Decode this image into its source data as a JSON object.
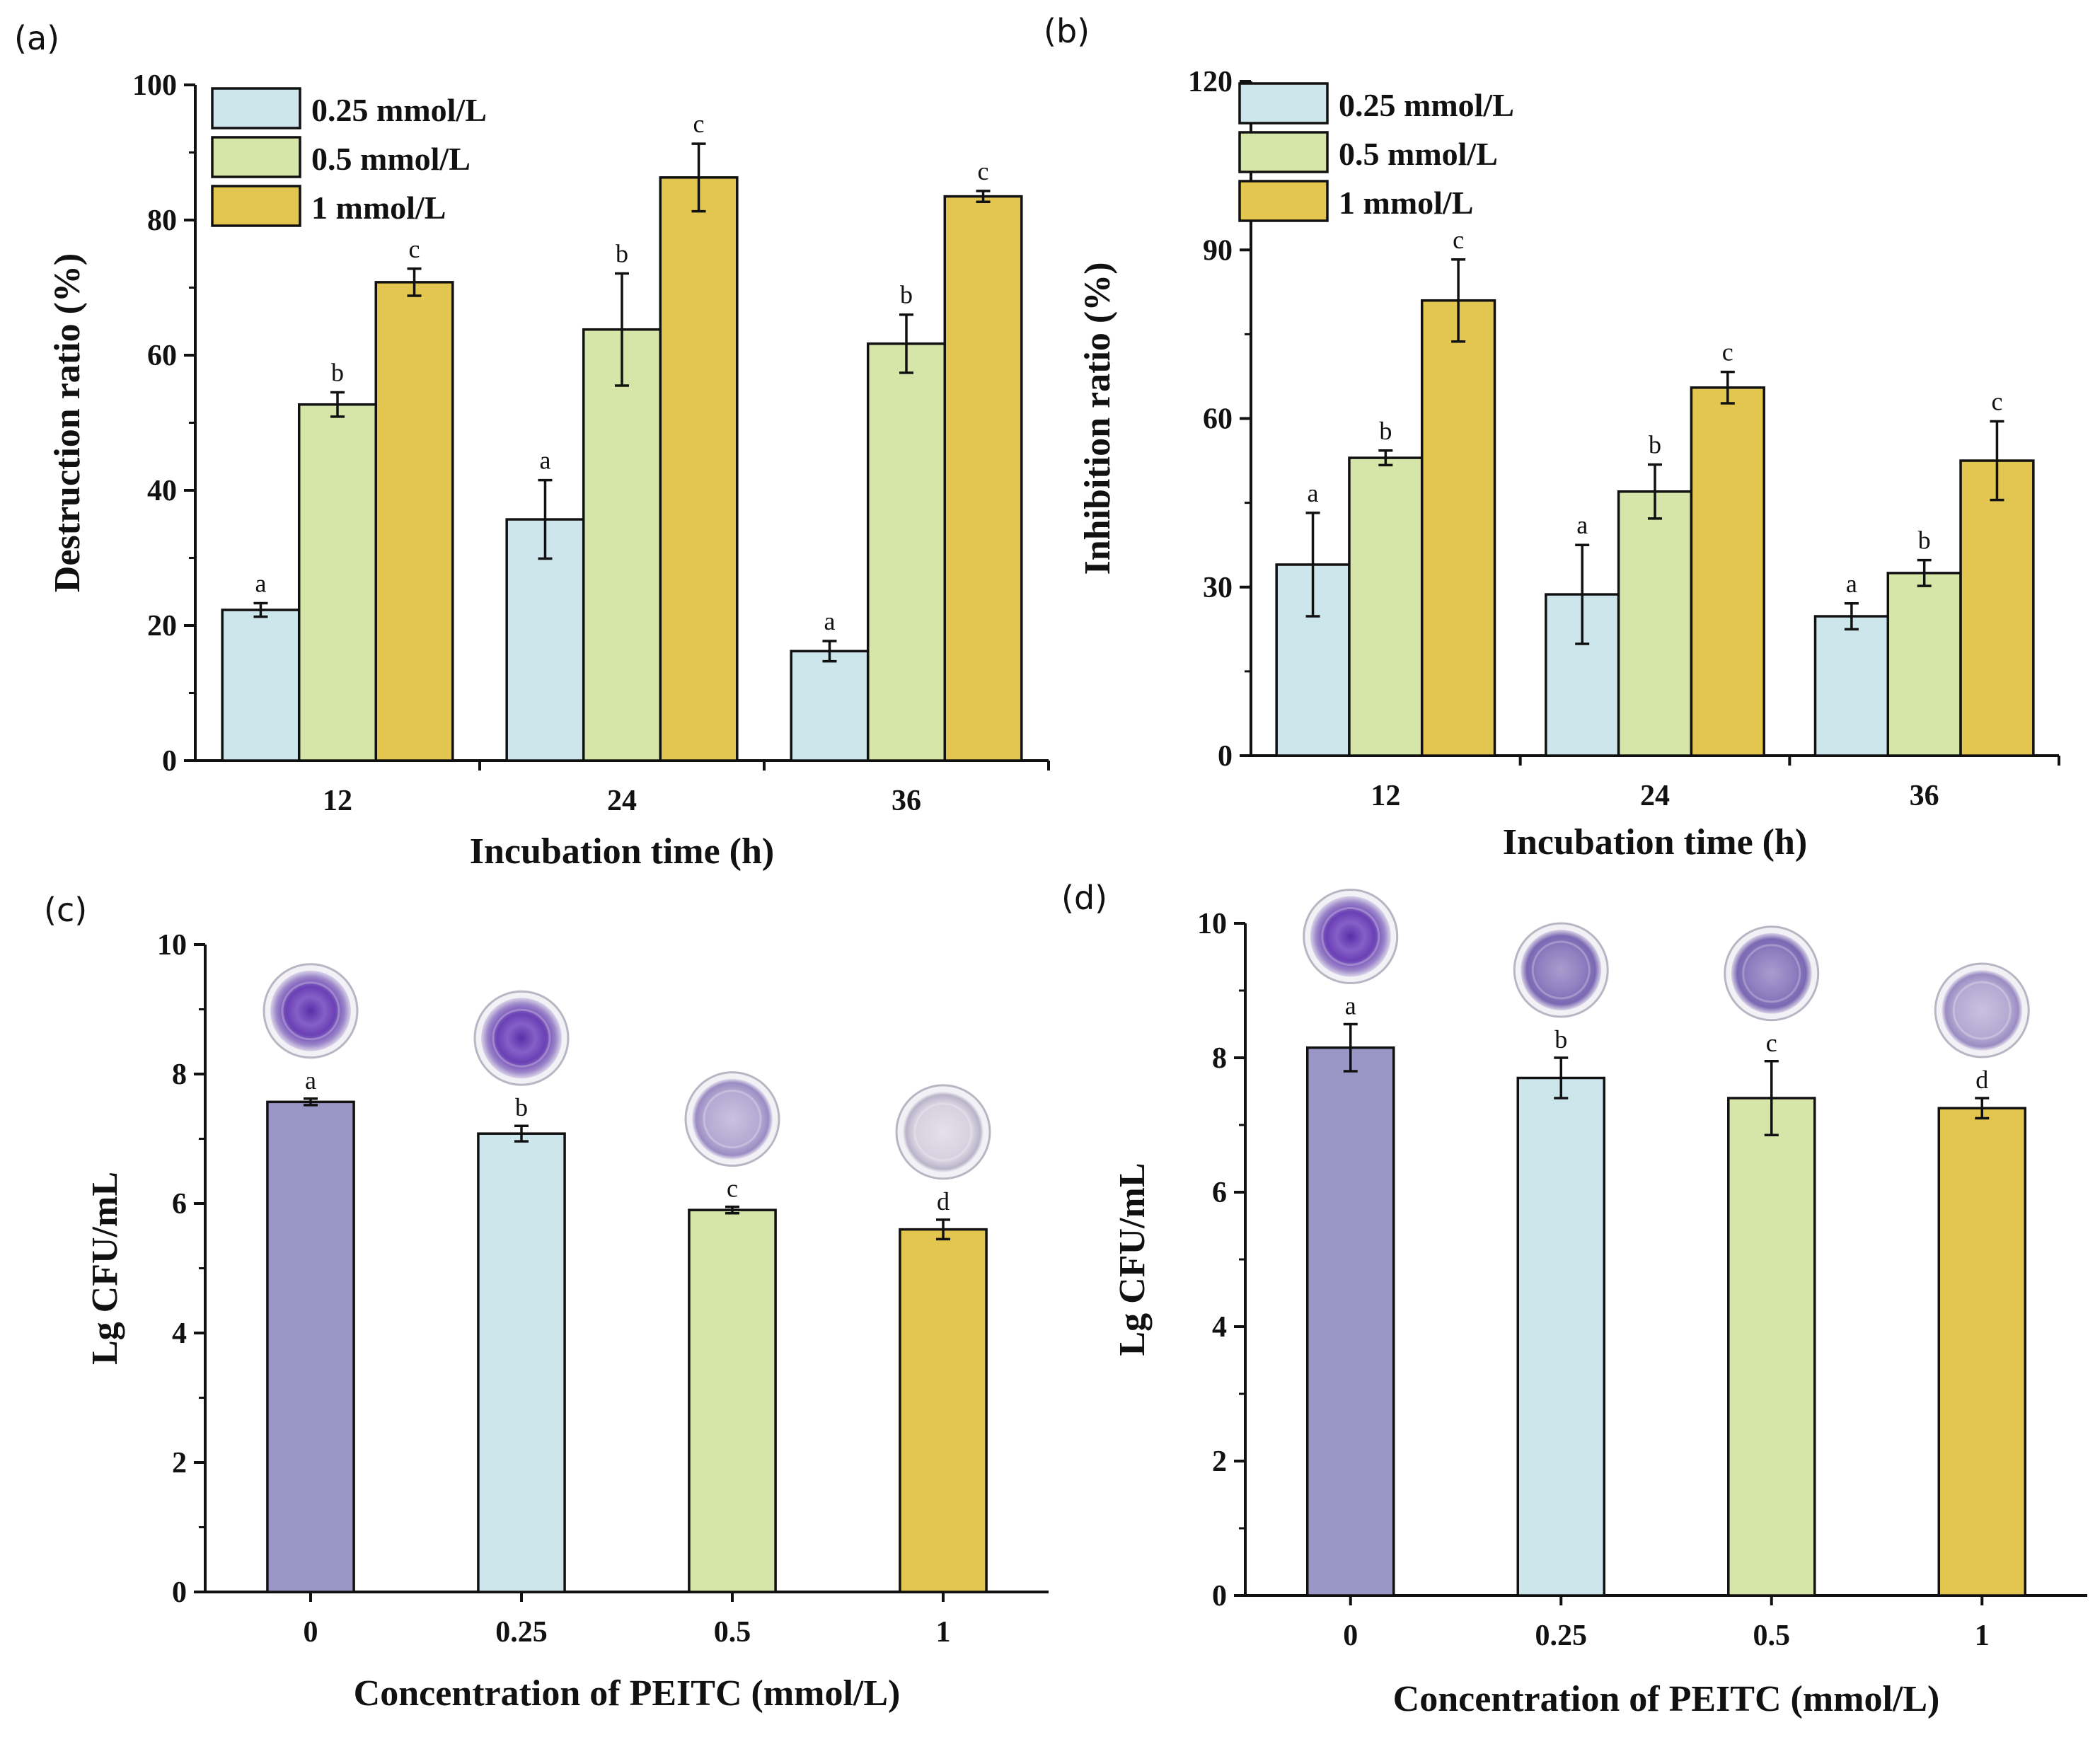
{
  "colors": {
    "c025": "#cde6ec",
    "c05": "#d6e6a8",
    "c1": "#e3c650",
    "c0": "#9a96c6",
    "stain_dark": "#6a3fb2",
    "stain_light": "#bcb2d8"
  },
  "chart_data": [
    {
      "id": "a",
      "panel_label": "(a)",
      "type": "bar",
      "categories": [
        "12",
        "24",
        "36"
      ],
      "series": [
        {
          "name": "0.25 mmol/L",
          "color_key": "c025",
          "values": [
            22.3,
            35.7,
            16.2
          ],
          "errors": [
            1.0,
            5.8,
            1.5
          ],
          "letters": [
            "a",
            "a",
            "a"
          ]
        },
        {
          "name": "0.5 mmol/L",
          "color_key": "c05",
          "values": [
            52.7,
            63.8,
            61.7
          ],
          "errors": [
            1.8,
            8.3,
            4.3
          ],
          "letters": [
            "b",
            "b",
            "b"
          ]
        },
        {
          "name": "1 mmol/L",
          "color_key": "c1",
          "values": [
            70.8,
            86.3,
            83.5
          ],
          "errors": [
            2.0,
            5.0,
            0.8
          ],
          "letters": [
            "c",
            "c",
            "c"
          ]
        }
      ],
      "ylim": [
        0,
        100
      ],
      "yticks": [
        "0",
        "20",
        "40",
        "60",
        "80",
        "100"
      ],
      "xlabel": "Incubation time (h)",
      "ylabel": "Destruction ratio (%)"
    },
    {
      "id": "b",
      "panel_label": "(b)",
      "type": "bar",
      "categories": [
        "12",
        "24",
        "36"
      ],
      "series": [
        {
          "name": "0.25 mmol/L",
          "color_key": "c025",
          "values": [
            34.0,
            28.7,
            24.8
          ],
          "errors": [
            9.2,
            8.8,
            2.3
          ],
          "letters": [
            "a",
            "a",
            "a"
          ]
        },
        {
          "name": "0.5 mmol/L",
          "color_key": "c05",
          "values": [
            53.0,
            47.0,
            32.5
          ],
          "errors": [
            1.3,
            4.8,
            2.3
          ],
          "letters": [
            "b",
            "b",
            "b"
          ]
        },
        {
          "name": "1 mmol/L",
          "color_key": "c1",
          "values": [
            81.0,
            65.5,
            52.5
          ],
          "errors": [
            7.3,
            2.8,
            7.0
          ],
          "letters": [
            "c",
            "c",
            "c"
          ]
        }
      ],
      "ylim": [
        0,
        120
      ],
      "yticks": [
        "0",
        "30",
        "60",
        "90",
        "120"
      ],
      "xlabel": "Incubation time (h)",
      "ylabel": "Inhibition ratio (%)"
    },
    {
      "id": "c",
      "panel_label": "(c)",
      "type": "bar",
      "categories": [
        "0",
        "0.25",
        "0.5",
        "1"
      ],
      "values": [
        7.57,
        7.08,
        5.9,
        5.6
      ],
      "errors": [
        0.05,
        0.12,
        0.05,
        0.15
      ],
      "letters": [
        "a",
        "b",
        "c",
        "d"
      ],
      "color_keys": [
        "c0",
        "c025",
        "c05",
        "c1"
      ],
      "stains": [
        "dark",
        "dark",
        "light",
        "pale"
      ],
      "ylim": [
        0,
        10
      ],
      "yticks": [
        "0",
        "2",
        "4",
        "6",
        "8",
        "10"
      ],
      "xlabel": "Concentration of PEITC (mmol/L)",
      "ylabel": "Lg CFU/mL"
    },
    {
      "id": "d",
      "panel_label": "(d)",
      "type": "bar",
      "categories": [
        "0",
        "0.25",
        "0.5",
        "1"
      ],
      "values": [
        8.15,
        7.7,
        7.4,
        7.25
      ],
      "errors": [
        0.35,
        0.3,
        0.55,
        0.15
      ],
      "letters": [
        "a",
        "b",
        "c",
        "d"
      ],
      "color_keys": [
        "c0",
        "c025",
        "c05",
        "c1"
      ],
      "stains": [
        "dark",
        "medium",
        "medium",
        "light"
      ],
      "ylim": [
        0,
        10
      ],
      "yticks": [
        "0",
        "2",
        "4",
        "6",
        "8",
        "10"
      ],
      "xlabel": "Concentration of PEITC (mmol/L)",
      "ylabel": "Lg CFU/mL"
    }
  ]
}
